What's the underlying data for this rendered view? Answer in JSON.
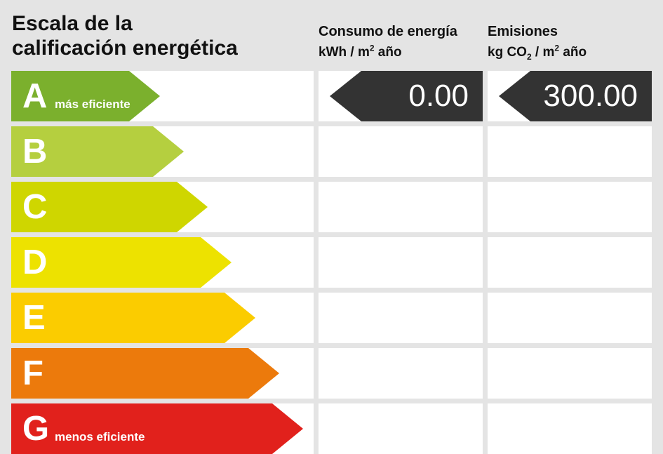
{
  "header": {
    "title_line1": "Escala de la",
    "title_line2": "calificación energética",
    "consumption_line1": "Consumo de energía",
    "consumption_unit_pre": "kWh / m",
    "consumption_unit_sup": "2",
    "consumption_unit_post": " año",
    "emissions_line1": "Emisiones",
    "emissions_unit_pre": "kg CO",
    "emissions_unit_sub": "2",
    "emissions_unit_mid": " / m",
    "emissions_unit_sup": "2",
    "emissions_unit_post": " año"
  },
  "bands": [
    {
      "letter": "A",
      "note": "más eficiente",
      "color": "#7bb02d"
    },
    {
      "letter": "B",
      "note": "",
      "color": "#b5cf3f"
    },
    {
      "letter": "C",
      "note": "",
      "color": "#cfd600"
    },
    {
      "letter": "D",
      "note": "",
      "color": "#ede200"
    },
    {
      "letter": "E",
      "note": "",
      "color": "#fbcc00"
    },
    {
      "letter": "F",
      "note": "",
      "color": "#ec7a0c"
    },
    {
      "letter": "G",
      "note": "menos eficiente",
      "color": "#e1211c"
    }
  ],
  "consumption": {
    "value": "0.00",
    "band": "A"
  },
  "emissions": {
    "value": "300.00",
    "band": "A"
  }
}
